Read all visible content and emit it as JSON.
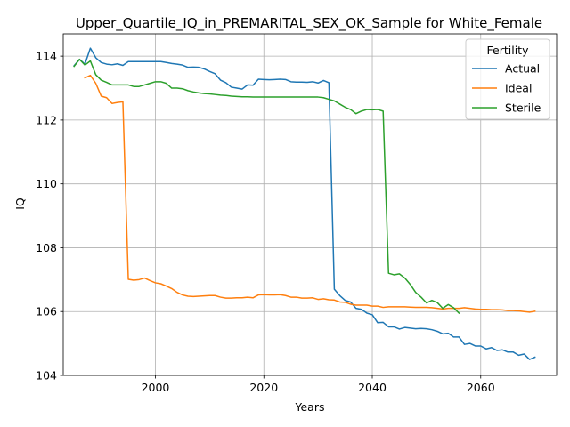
{
  "chart_data": {
    "type": "line",
    "title": "Upper_Quartile_IQ_in_PREMARITAL_SEX_OK_Sample for White_Female",
    "xlabel": "Years",
    "ylabel": "IQ",
    "xlim": [
      1983,
      2074
    ],
    "ylim": [
      104,
      114.7
    ],
    "xticks": [
      2000,
      2020,
      2040,
      2060
    ],
    "xtick_labels": [
      "2000",
      "2020",
      "2040",
      "2060"
    ],
    "yticks": [
      104,
      106,
      108,
      110,
      112,
      114
    ],
    "ytick_labels": [
      "104",
      "106",
      "108",
      "110",
      "112",
      "114"
    ],
    "grid": true,
    "legend": {
      "title": "Fertility",
      "position": "top-right"
    },
    "series": [
      {
        "name": "Actual",
        "color": "#1f77b4",
        "x": [
          1985,
          1986,
          1987,
          1988,
          1989,
          1990,
          1991,
          1992,
          1993,
          1994,
          1995,
          1996,
          1997,
          1998,
          1999,
          2000,
          2001,
          2002,
          2003,
          2004,
          2005,
          2006,
          2007,
          2008,
          2009,
          2010,
          2011,
          2012,
          2013,
          2014,
          2015,
          2016,
          2017,
          2018,
          2019,
          2020,
          2021,
          2022,
          2023,
          2024,
          2025,
          2026,
          2027,
          2028,
          2029,
          2030,
          2031,
          2032,
          2033,
          2034,
          2035,
          2036,
          2037,
          2038,
          2039,
          2040,
          2041,
          2042,
          2043,
          2044,
          2045,
          2046,
          2047,
          2048,
          2049,
          2050,
          2051,
          2052,
          2053,
          2054,
          2055,
          2056,
          2057,
          2058,
          2059,
          2060,
          2061,
          2062,
          2063,
          2064,
          2065,
          2066,
          2067,
          2068,
          2069,
          2070
        ],
        "y": [
          113.7,
          113.9,
          113.75,
          114.25,
          113.95,
          113.8,
          113.75,
          113.73,
          113.76,
          113.71,
          113.83,
          113.83,
          113.83,
          113.83,
          113.83,
          113.83,
          113.83,
          113.8,
          113.77,
          113.75,
          113.72,
          113.65,
          113.66,
          113.65,
          113.6,
          113.52,
          113.45,
          113.25,
          113.17,
          113.03,
          113.0,
          112.97,
          113.1,
          113.09,
          113.28,
          113.27,
          113.26,
          113.27,
          113.28,
          113.27,
          113.2,
          113.19,
          113.19,
          113.18,
          113.2,
          113.16,
          113.24,
          113.17,
          106.7,
          106.5,
          106.35,
          106.3,
          106.1,
          106.07,
          105.95,
          105.9,
          105.65,
          105.66,
          105.52,
          105.52,
          105.45,
          105.5,
          105.48,
          105.46,
          105.47,
          105.46,
          105.43,
          105.38,
          105.3,
          105.32,
          105.2,
          105.2,
          104.97,
          105.0,
          104.92,
          104.92,
          104.83,
          104.87,
          104.78,
          104.8,
          104.73,
          104.73,
          104.63,
          104.67,
          104.5,
          104.57
        ]
      },
      {
        "name": "Ideal",
        "color": "#ff7f0e",
        "x": [
          1987,
          1988,
          1989,
          1990,
          1991,
          1992,
          1993,
          1994,
          1995,
          1996,
          1997,
          1998,
          1999,
          2000,
          2001,
          2002,
          2003,
          2004,
          2005,
          2006,
          2007,
          2008,
          2009,
          2010,
          2011,
          2012,
          2013,
          2014,
          2015,
          2016,
          2017,
          2018,
          2019,
          2020,
          2021,
          2022,
          2023,
          2024,
          2025,
          2026,
          2027,
          2028,
          2029,
          2030,
          2031,
          2032,
          2033,
          2034,
          2035,
          2036,
          2037,
          2038,
          2039,
          2040,
          2041,
          2042,
          2043,
          2044,
          2045,
          2046,
          2047,
          2048,
          2049,
          2050,
          2051,
          2052,
          2053,
          2054,
          2055,
          2056,
          2057,
          2058,
          2059,
          2060,
          2061,
          2062,
          2063,
          2064,
          2065,
          2066,
          2067,
          2068,
          2069,
          2070
        ],
        "y": [
          113.32,
          113.4,
          113.15,
          112.75,
          112.7,
          112.52,
          112.55,
          112.57,
          107.01,
          106.98,
          107.0,
          107.05,
          106.97,
          106.9,
          106.87,
          106.8,
          106.72,
          106.6,
          106.52,
          106.48,
          106.47,
          106.48,
          106.49,
          106.5,
          106.5,
          106.45,
          106.42,
          106.42,
          106.43,
          106.43,
          106.45,
          106.43,
          106.52,
          106.53,
          106.52,
          106.52,
          106.53,
          106.5,
          106.45,
          106.45,
          106.42,
          106.42,
          106.43,
          106.38,
          106.4,
          106.37,
          106.36,
          106.3,
          106.29,
          106.23,
          106.2,
          106.2,
          106.2,
          106.17,
          106.17,
          106.13,
          106.15,
          106.15,
          106.15,
          106.15,
          106.14,
          106.13,
          106.13,
          106.13,
          106.12,
          106.1,
          106.08,
          106.1,
          106.1,
          106.1,
          106.12,
          106.1,
          106.08,
          106.07,
          106.07,
          106.06,
          106.06,
          106.05,
          106.03,
          106.03,
          106.02,
          106.0,
          105.98,
          106.01
        ]
      },
      {
        "name": "Sterile",
        "color": "#2ca02c",
        "x": [
          1985,
          1986,
          1987,
          1988,
          1989,
          1990,
          1991,
          1992,
          1993,
          1994,
          1995,
          1996,
          1997,
          1998,
          1999,
          2000,
          2001,
          2002,
          2003,
          2004,
          2005,
          2006,
          2007,
          2008,
          2009,
          2010,
          2011,
          2012,
          2013,
          2014,
          2015,
          2016,
          2017,
          2018,
          2019,
          2020,
          2021,
          2022,
          2023,
          2024,
          2025,
          2026,
          2027,
          2028,
          2029,
          2030,
          2031,
          2032,
          2033,
          2034,
          2035,
          2036,
          2037,
          2038,
          2039,
          2040,
          2041,
          2042,
          2043,
          2044,
          2045,
          2046,
          2047,
          2048,
          2049,
          2050,
          2051,
          2052,
          2053,
          2054,
          2055,
          2056
        ],
        "y": [
          113.68,
          113.9,
          113.72,
          113.85,
          113.42,
          113.25,
          113.18,
          113.1,
          113.1,
          113.1,
          113.1,
          113.05,
          113.05,
          113.1,
          113.15,
          113.2,
          113.2,
          113.15,
          113.0,
          113.0,
          112.98,
          112.92,
          112.88,
          112.85,
          112.83,
          112.82,
          112.8,
          112.78,
          112.77,
          112.75,
          112.74,
          112.73,
          112.73,
          112.72,
          112.72,
          112.72,
          112.72,
          112.72,
          112.72,
          112.72,
          112.72,
          112.72,
          112.72,
          112.72,
          112.72,
          112.72,
          112.7,
          112.65,
          112.6,
          112.5,
          112.4,
          112.33,
          112.2,
          112.28,
          112.33,
          112.32,
          112.33,
          112.28,
          107.2,
          107.15,
          107.18,
          107.05,
          106.85,
          106.6,
          106.45,
          106.27,
          106.35,
          106.28,
          106.1,
          106.22,
          106.12,
          105.95
        ]
      }
    ]
  }
}
